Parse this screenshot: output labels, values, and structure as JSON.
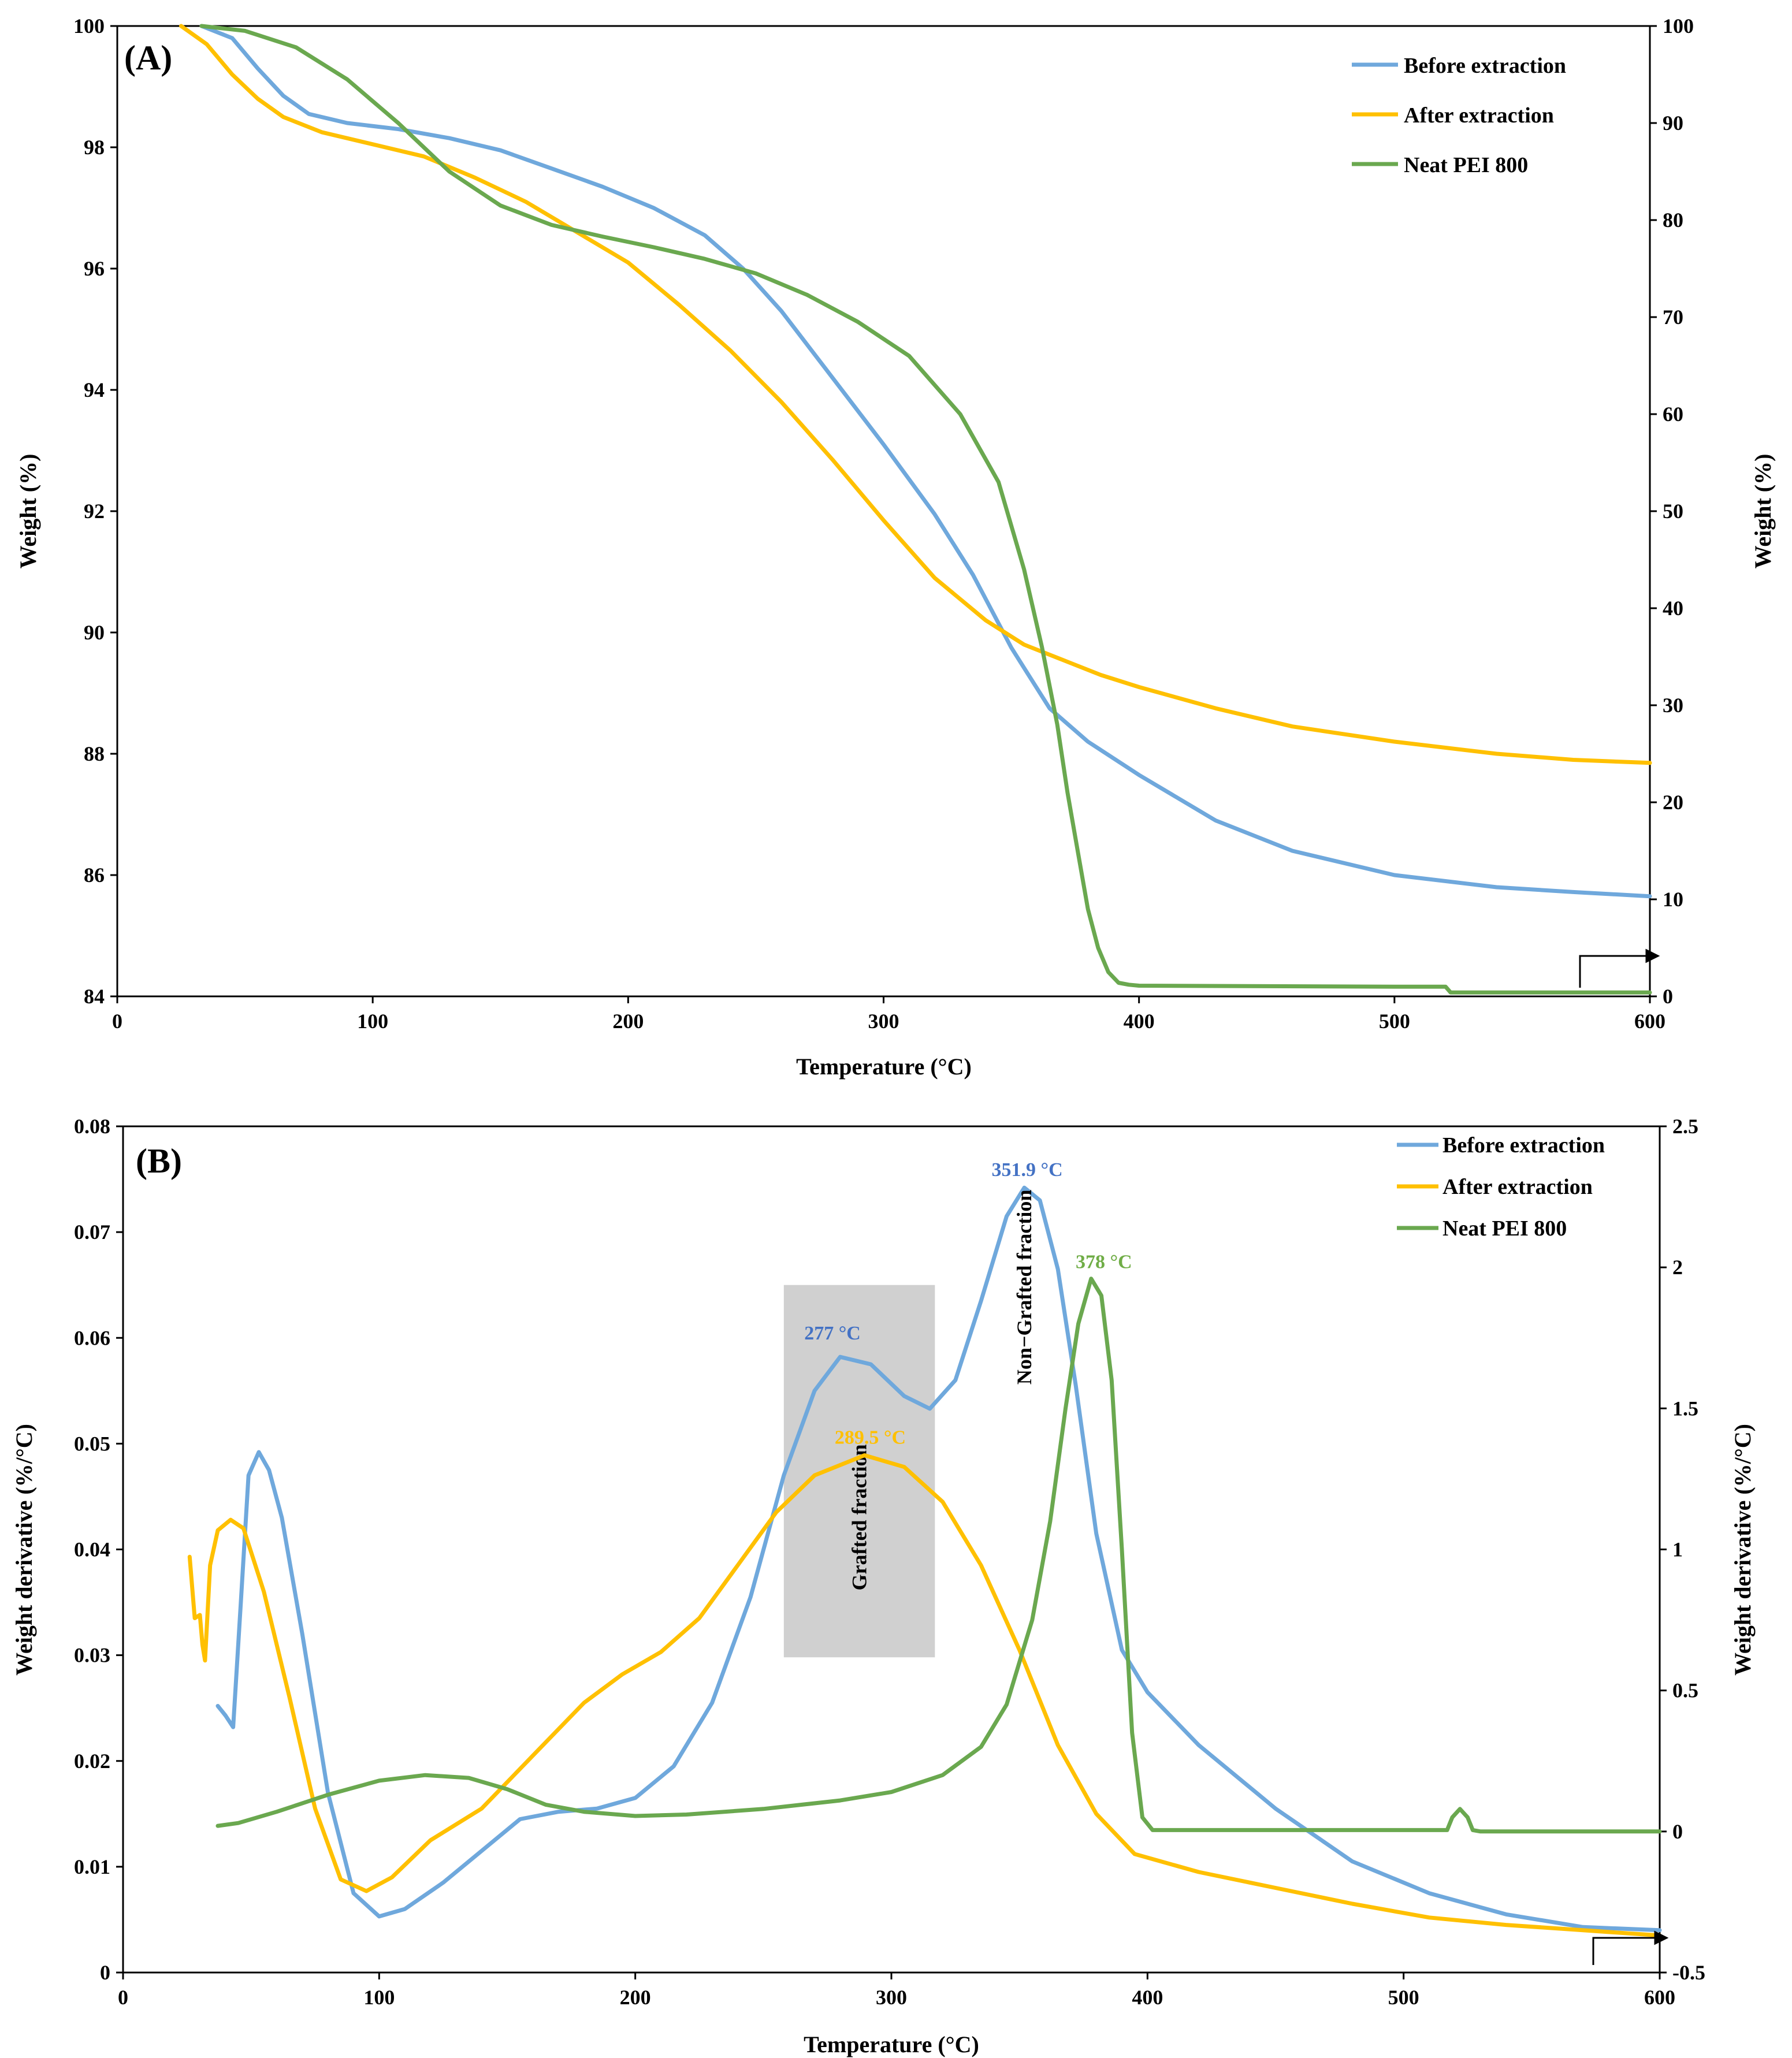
{
  "chart_data": [
    {
      "type": "line",
      "panel_label": "(A)",
      "xlabel": "Temperature (°C)",
      "ylabel": "Weight (%)",
      "y2label": "Weight (%)",
      "xlim": [
        0,
        600
      ],
      "ylim": [
        84,
        100
      ],
      "y2lim": [
        0,
        100
      ],
      "xticks": [
        0,
        100,
        200,
        300,
        400,
        500,
        600
      ],
      "yticks": [
        84,
        86,
        88,
        90,
        92,
        94,
        96,
        98,
        100
      ],
      "y2ticks": [
        0,
        10,
        20,
        30,
        40,
        50,
        60,
        70,
        80,
        90,
        100
      ],
      "legend_position": "top-right",
      "colors": {
        "before": "#6fa8dc",
        "after": "#ffc000",
        "neat": "#6aa84f"
      },
      "series": [
        {
          "name": "Before extraction",
          "axis": "left",
          "x": [
            33,
            45,
            55,
            65,
            75,
            90,
            110,
            130,
            150,
            170,
            190,
            210,
            230,
            245,
            260,
            280,
            300,
            320,
            335,
            350,
            365,
            380,
            400,
            430,
            460,
            500,
            540,
            570,
            600
          ],
          "y": [
            100,
            99.8,
            99.3,
            98.85,
            98.55,
            98.4,
            98.3,
            98.15,
            97.95,
            97.65,
            97.35,
            97.0,
            96.55,
            96.0,
            95.3,
            94.2,
            93.1,
            91.95,
            90.95,
            89.75,
            88.75,
            88.2,
            87.65,
            86.9,
            86.4,
            86.0,
            85.8,
            85.72,
            85.65
          ]
        },
        {
          "name": "After extraction",
          "axis": "left",
          "x": [
            25,
            35,
            45,
            55,
            65,
            80,
            100,
            120,
            140,
            160,
            180,
            200,
            220,
            240,
            260,
            280,
            300,
            320,
            340,
            355,
            370,
            385,
            400,
            430,
            460,
            500,
            540,
            570,
            600
          ],
          "y": [
            100,
            99.7,
            99.2,
            98.8,
            98.5,
            98.25,
            98.05,
            97.85,
            97.5,
            97.1,
            96.6,
            96.1,
            95.4,
            94.65,
            93.8,
            92.85,
            91.85,
            90.9,
            90.2,
            89.8,
            89.55,
            89.3,
            89.1,
            88.75,
            88.45,
            88.2,
            88.0,
            87.9,
            87.85
          ]
        },
        {
          "name": "Neat PEI 800",
          "axis": "right",
          "x": [
            33,
            50,
            70,
            90,
            110,
            130,
            150,
            170,
            190,
            210,
            230,
            250,
            270,
            290,
            310,
            330,
            345,
            355,
            362,
            368,
            372,
            376,
            380,
            384,
            388,
            392,
            396,
            400,
            450,
            500,
            520,
            522,
            560,
            600
          ],
          "y": [
            100,
            99.5,
            97.8,
            94.5,
            90.0,
            85.0,
            81.5,
            79.5,
            78.3,
            77.2,
            76.0,
            74.5,
            72.3,
            69.5,
            66.0,
            60.0,
            53.0,
            44.0,
            36.0,
            28.0,
            21.0,
            15.0,
            9.0,
            5.0,
            2.5,
            1.4,
            1.2,
            1.1,
            1.05,
            1.0,
            1.0,
            0.4,
            0.4,
            0.4
          ]
        }
      ]
    },
    {
      "type": "line",
      "panel_label": "(B)",
      "xlabel": "Temperature (°C)",
      "ylabel": "Weight derivative (%/°C)",
      "y2label": "Weight derivative (%/°C)",
      "xlim": [
        0,
        600
      ],
      "ylim": [
        0,
        0.08
      ],
      "y2lim": [
        -0.5,
        2.5
      ],
      "xticks": [
        0,
        100,
        200,
        300,
        400,
        500,
        600
      ],
      "yticks": [
        0,
        0.01,
        0.02,
        0.03,
        0.04,
        0.05,
        0.06,
        0.07,
        0.08
      ],
      "y2ticks": [
        -0.5,
        0,
        0.5,
        1,
        1.5,
        2,
        2.5
      ],
      "legend_position": "top-right",
      "colors": {
        "before": "#6fa8dc",
        "after": "#ffc000",
        "neat": "#6aa84f",
        "shade": "#d0d0d0",
        "label_before": "#4472c4",
        "label_after": "#ffc000",
        "label_neat": "#70ad47"
      },
      "series": [
        {
          "name": "Before extraction",
          "axis": "left",
          "x": [
            37,
            40,
            43,
            46,
            49,
            53,
            57,
            62,
            70,
            80,
            90,
            100,
            110,
            125,
            140,
            155,
            170,
            185,
            200,
            215,
            230,
            245,
            258,
            270,
            280,
            292,
            305,
            315,
            325,
            335,
            345,
            351.9,
            358,
            365,
            372,
            380,
            390,
            400,
            420,
            450,
            480,
            510,
            540,
            570,
            600
          ],
          "y": [
            0.0252,
            0.0243,
            0.0232,
            0.035,
            0.047,
            0.0492,
            0.0475,
            0.043,
            0.032,
            0.017,
            0.0075,
            0.0053,
            0.006,
            0.0085,
            0.0115,
            0.0145,
            0.0152,
            0.0155,
            0.0165,
            0.0195,
            0.0255,
            0.0355,
            0.047,
            0.055,
            0.0582,
            0.0575,
            0.0545,
            0.0533,
            0.056,
            0.0635,
            0.0715,
            0.0742,
            0.073,
            0.0665,
            0.0555,
            0.0415,
            0.0305,
            0.0265,
            0.0215,
            0.0155,
            0.0105,
            0.0075,
            0.0055,
            0.0043,
            0.004
          ]
        },
        {
          "name": "After extraction",
          "axis": "left",
          "x": [
            26,
            28,
            30,
            31,
            32,
            34,
            37,
            42,
            47,
            55,
            65,
            75,
            85,
            95,
            105,
            120,
            140,
            160,
            180,
            195,
            210,
            225,
            240,
            255,
            270,
            289.5,
            305,
            320,
            335,
            350,
            365,
            380,
            395,
            420,
            450,
            480,
            510,
            540,
            570,
            600
          ],
          "y": [
            0.0393,
            0.0335,
            0.0338,
            0.031,
            0.0295,
            0.0385,
            0.0418,
            0.0428,
            0.042,
            0.036,
            0.026,
            0.0155,
            0.0088,
            0.0077,
            0.009,
            0.0125,
            0.0155,
            0.0205,
            0.0255,
            0.0282,
            0.0303,
            0.0335,
            0.0385,
            0.0435,
            0.047,
            0.0489,
            0.0478,
            0.0445,
            0.0385,
            0.0305,
            0.0215,
            0.015,
            0.0112,
            0.0095,
            0.008,
            0.0065,
            0.0052,
            0.0045,
            0.004,
            0.0035
          ]
        },
        {
          "name": "Neat PEI 800",
          "axis": "right",
          "x": [
            37,
            45,
            60,
            80,
            100,
            118,
            135,
            150,
            165,
            180,
            200,
            220,
            250,
            280,
            300,
            320,
            335,
            345,
            355,
            362,
            368,
            373,
            378,
            382,
            386,
            390,
            394,
            398,
            402,
            450,
            500,
            517,
            519,
            522,
            525,
            527,
            530,
            560,
            600
          ],
          "y": [
            0.02,
            0.03,
            0.07,
            0.13,
            0.18,
            0.2,
            0.19,
            0.15,
            0.095,
            0.07,
            0.055,
            0.06,
            0.08,
            0.11,
            0.14,
            0.2,
            0.3,
            0.45,
            0.75,
            1.1,
            1.5,
            1.8,
            1.96,
            1.9,
            1.6,
            1.0,
            0.35,
            0.05,
            0.005,
            0.005,
            0.005,
            0.005,
            0.05,
            0.08,
            0.05,
            0.005,
            0.0,
            0.0,
            0.0
          ]
        }
      ],
      "annotations": {
        "peak_before_1": {
          "text": "277 °C",
          "x": 277,
          "y": 0.0582
        },
        "peak_before_2": {
          "text": "351.9 °C",
          "x": 351.9,
          "y": 0.0742
        },
        "peak_after": {
          "text": "289.5 °C",
          "x": 289.5,
          "y": 0.0489
        },
        "peak_neat": {
          "text": "378 °C",
          "x": 378,
          "y": 0.0655
        },
        "grafted_region": {
          "text": "Grafted fraction",
          "x_start": 258,
          "x_end": 317,
          "y_start": 0.0298,
          "y_end": 0.065
        },
        "non_grafted_label": {
          "text": "Non−Grafted fraction",
          "x": 351.9
        }
      }
    }
  ]
}
